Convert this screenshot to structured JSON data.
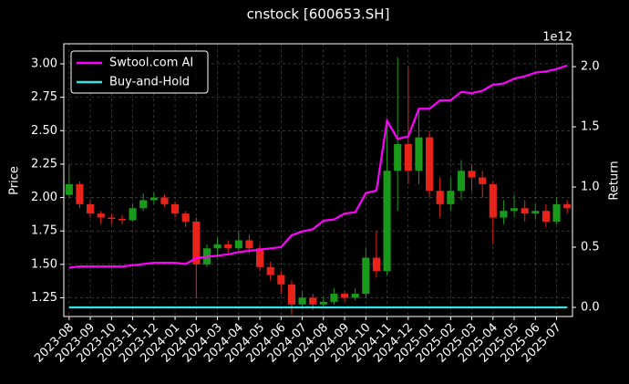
{
  "chart_data": {
    "type": "candlestick",
    "title": "cnstock [600653.SH]",
    "ylabel": "Price",
    "y2label": "Return",
    "y2_offset_label": "1e12",
    "categories": [
      "2023-08",
      null,
      "2023-09",
      null,
      "2023-10",
      null,
      "2023-11",
      null,
      "2023-12",
      null,
      "2024-01",
      null,
      "2024-02",
      null,
      "2024-03",
      null,
      "2024-04",
      null,
      "2024-05",
      null,
      "2024-06",
      null,
      "2024-07",
      null,
      "2024-08",
      null,
      "2024-09",
      null,
      "2024-10",
      null,
      "2024-11",
      null,
      "2024-12",
      null,
      "2025-01",
      null,
      "2025-02",
      null,
      "2025-03",
      null,
      "2025-04",
      null,
      "2025-05",
      null,
      "2025-06",
      null,
      "2025-07",
      null
    ],
    "open": [
      2.02,
      2.1,
      1.95,
      1.88,
      1.85,
      1.84,
      1.83,
      1.92,
      1.98,
      2.0,
      1.95,
      1.88,
      1.82,
      1.5,
      1.62,
      1.65,
      1.62,
      1.68,
      1.62,
      1.48,
      1.42,
      1.35,
      1.2,
      1.25,
      1.2,
      1.22,
      1.28,
      1.25,
      1.28,
      1.55,
      1.45,
      2.2,
      2.4,
      2.2,
      2.45,
      2.05,
      1.95,
      2.05,
      2.2,
      2.15,
      2.1,
      1.85,
      1.9,
      1.92,
      1.88,
      1.9,
      1.82,
      1.95
    ],
    "high": [
      2.25,
      2.12,
      1.98,
      1.9,
      1.88,
      1.87,
      1.95,
      2.03,
      2.04,
      2.02,
      1.97,
      1.9,
      1.85,
      1.65,
      1.7,
      1.68,
      1.75,
      1.72,
      1.65,
      1.52,
      1.45,
      1.38,
      1.3,
      1.28,
      1.26,
      1.32,
      1.3,
      1.32,
      1.62,
      1.75,
      2.55,
      3.05,
      2.98,
      2.65,
      2.5,
      2.15,
      2.15,
      2.28,
      2.25,
      2.2,
      2.12,
      1.98,
      2.02,
      1.98,
      1.95,
      1.95,
      2.0,
      1.98
    ],
    "low": [
      2.0,
      1.92,
      1.85,
      1.8,
      1.8,
      1.8,
      1.82,
      1.9,
      1.95,
      1.93,
      1.85,
      1.78,
      1.25,
      1.48,
      1.55,
      1.58,
      1.6,
      1.58,
      1.45,
      1.38,
      1.28,
      1.12,
      1.18,
      1.16,
      1.17,
      1.2,
      1.22,
      1.23,
      1.25,
      1.4,
      1.42,
      1.9,
      2.1,
      2.1,
      2.0,
      1.85,
      1.9,
      1.98,
      2.05,
      2.0,
      1.65,
      1.8,
      1.85,
      1.82,
      1.84,
      1.78,
      1.8,
      1.88
    ],
    "close": [
      2.1,
      1.95,
      1.88,
      1.85,
      1.84,
      1.83,
      1.92,
      1.98,
      2.0,
      1.95,
      1.88,
      1.82,
      1.5,
      1.62,
      1.65,
      1.62,
      1.68,
      1.62,
      1.48,
      1.42,
      1.35,
      1.2,
      1.25,
      1.2,
      1.22,
      1.28,
      1.25,
      1.28,
      1.55,
      1.45,
      2.2,
      2.4,
      2.2,
      2.45,
      2.05,
      1.95,
      2.05,
      2.2,
      2.15,
      2.1,
      1.85,
      1.9,
      1.92,
      1.88,
      1.9,
      1.82,
      1.95,
      1.92
    ],
    "up_color": "#1a9a1a",
    "down_color": "#e8241a",
    "series": [
      {
        "name": "Swtool.com AI",
        "color": "#ff00ff",
        "axis": "y2",
        "values": [
          0.33,
          0.34,
          0.34,
          0.34,
          0.34,
          0.34,
          0.35,
          0.36,
          0.37,
          0.37,
          0.37,
          0.36,
          0.41,
          0.42,
          0.43,
          0.44,
          0.46,
          0.47,
          0.48,
          0.49,
          0.5,
          0.6,
          0.63,
          0.65,
          0.72,
          0.73,
          0.78,
          0.79,
          0.95,
          0.97,
          1.55,
          1.4,
          1.42,
          1.65,
          1.65,
          1.72,
          1.72,
          1.79,
          1.78,
          1.8,
          1.85,
          1.86,
          1.9,
          1.92,
          1.95,
          1.96,
          1.98,
          2.01
        ]
      },
      {
        "name": "Buy-and-Hold",
        "color": "#33e6e6",
        "axis": "y2",
        "values": [
          0,
          0,
          0,
          0,
          0,
          0,
          0,
          0,
          0,
          0,
          0,
          0,
          0,
          0,
          0,
          0,
          0,
          0,
          0,
          0,
          0,
          0,
          0,
          0,
          0,
          0,
          0,
          0,
          0,
          0,
          0,
          0,
          0,
          0,
          0,
          0,
          0,
          0,
          0,
          0,
          0,
          0,
          0,
          0,
          0,
          0,
          0,
          0
        ]
      }
    ],
    "ylim": [
      1.11,
      3.15
    ],
    "yticks": [
      1.25,
      {
        "value": 1.5,
        "label": "1.50"
      },
      1.75,
      {
        "value": 2,
        "label": "2.00"
      },
      2.25,
      {
        "value": 2.5,
        "label": "2.50"
      },
      2.75,
      {
        "value": 3,
        "label": "3.00"
      }
    ],
    "y2lim": [
      -0.076,
      2.19
    ],
    "y2ticks": [
      {
        "value": 0,
        "label": "0.0"
      },
      0.5,
      {
        "value": 1,
        "label": "1.0"
      },
      1.5,
      {
        "value": 2,
        "label": "2.0"
      }
    ],
    "grid": true,
    "legend": "upper left"
  }
}
